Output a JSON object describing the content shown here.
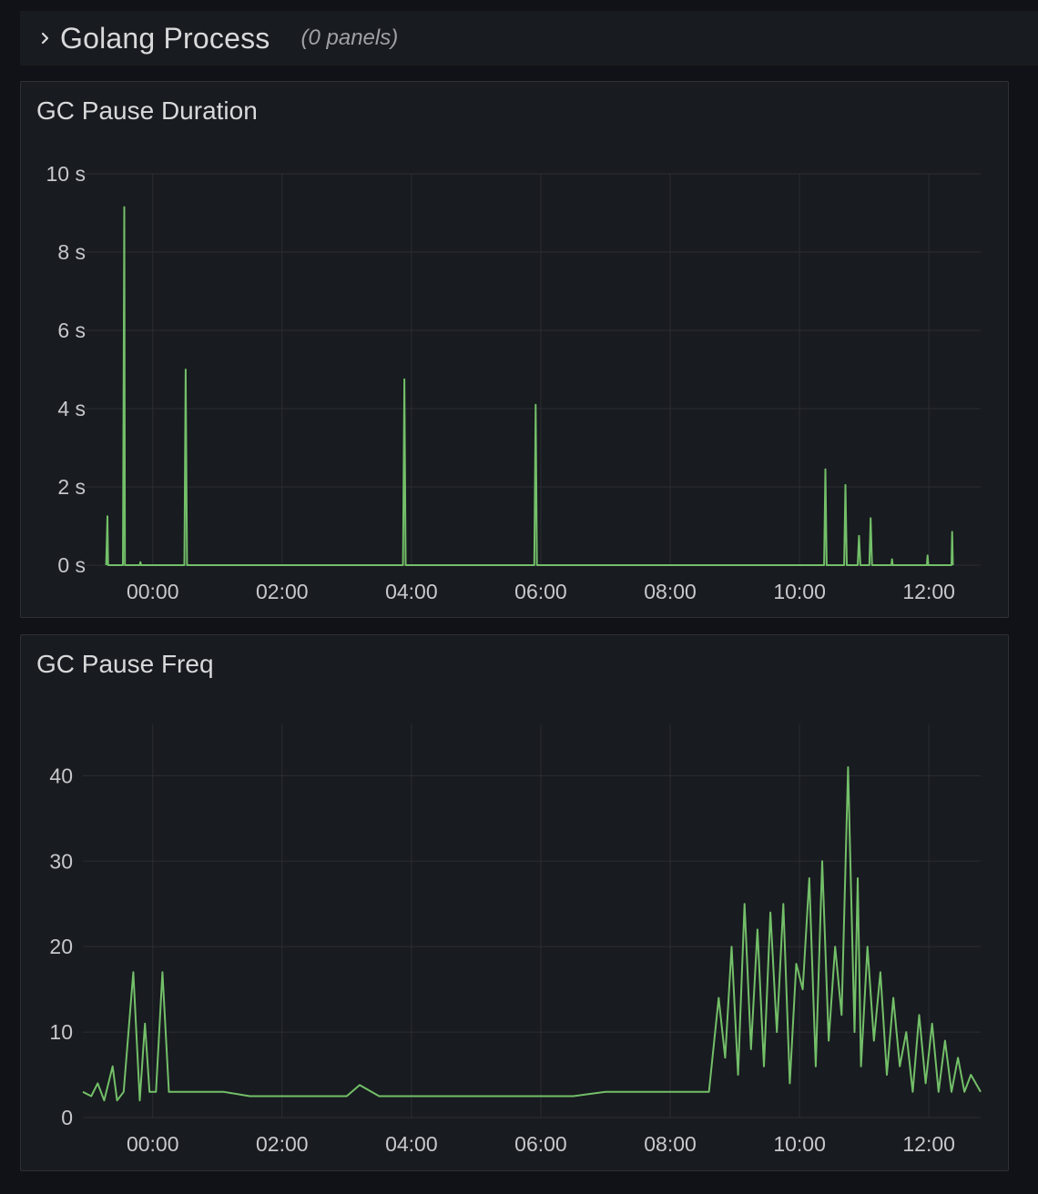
{
  "row": {
    "title": "Golang Process",
    "count": "(0 panels)",
    "icon": "chevron-right-icon"
  },
  "panels": [
    {
      "title": "GC Pause Duration",
      "chart_data": {
        "type": "line",
        "title": "GC Pause Duration",
        "x_unit": "time (hours)",
        "x_range": [
          -1.08,
          12.8
        ],
        "xticks": [
          "00:00",
          "02:00",
          "04:00",
          "06:00",
          "08:00",
          "10:00",
          "12:00"
        ],
        "xtick_values": [
          0,
          2,
          4,
          6,
          8,
          10,
          12
        ],
        "yticks": [
          "0 s",
          "2 s",
          "4 s",
          "6 s",
          "8 s",
          "10 s"
        ],
        "ylim": [
          0,
          10
        ],
        "grid": true,
        "color": "#73bf69",
        "series": [
          {
            "x": [
              -0.72,
              -0.7,
              -0.69,
              -0.46,
              -0.44,
              -0.43,
              -0.2,
              -0.19,
              -0.18,
              0.49,
              0.51,
              0.53,
              3.87,
              3.89,
              3.91,
              5.9,
              5.92,
              5.94,
              10.38,
              10.4,
              10.42,
              10.69,
              10.71,
              10.73,
              10.9,
              10.92,
              10.94,
              11.08,
              11.1,
              11.12,
              11.42,
              11.43,
              11.44,
              11.97,
              11.98,
              11.99,
              12.35,
              12.36,
              12.37
            ],
            "y": [
              0,
              1.25,
              0,
              0,
              9.15,
              0,
              0,
              0.08,
              0,
              0,
              5.0,
              0,
              0,
              4.75,
              0,
              0,
              4.1,
              0,
              0,
              2.45,
              0,
              0,
              2.05,
              0,
              0,
              0.75,
              0,
              0,
              1.2,
              0,
              0,
              0.15,
              0,
              0,
              0.25,
              0,
              0,
              0.85,
              0
            ]
          }
        ]
      }
    },
    {
      "title": "GC Pause Freq",
      "chart_data": {
        "type": "line",
        "title": "GC Pause Freq",
        "x_unit": "time (hours)",
        "x_range": [
          -1.08,
          12.8
        ],
        "xticks": [
          "00:00",
          "02:00",
          "04:00",
          "06:00",
          "08:00",
          "10:00",
          "12:00"
        ],
        "xtick_values": [
          0,
          2,
          4,
          6,
          8,
          10,
          12
        ],
        "yticks": [
          "0",
          "10",
          "20",
          "30",
          "40"
        ],
        "ylim": [
          0,
          46
        ],
        "grid": true,
        "color": "#73bf69",
        "series": [
          {
            "x": [
              -1.08,
              -0.95,
              -0.85,
              -0.75,
              -0.62,
              -0.55,
              -0.45,
              -0.3,
              -0.2,
              -0.12,
              -0.05,
              0.05,
              0.15,
              0.25,
              0.5,
              0.75,
              1.1,
              1.5,
              2.0,
              2.5,
              3.0,
              3.2,
              3.5,
              4.0,
              4.5,
              5.0,
              5.5,
              6.0,
              6.5,
              7.0,
              7.5,
              8.0,
              8.3,
              8.6,
              8.75,
              8.85,
              8.95,
              9.05,
              9.15,
              9.25,
              9.35,
              9.45,
              9.55,
              9.65,
              9.75,
              9.85,
              9.95,
              10.05,
              10.15,
              10.25,
              10.35,
              10.45,
              10.55,
              10.65,
              10.75,
              10.85,
              10.9,
              10.95,
              11.05,
              11.15,
              11.25,
              11.35,
              11.45,
              11.55,
              11.65,
              11.75,
              11.85,
              11.95,
              12.05,
              12.15,
              12.25,
              12.35,
              12.45,
              12.55,
              12.65,
              12.8
            ],
            "y": [
              3,
              2.5,
              4,
              2,
              6,
              2,
              3,
              17,
              2,
              11,
              3,
              3,
              17,
              3,
              3,
              3,
              3,
              2.5,
              2.5,
              2.5,
              2.5,
              3.8,
              2.5,
              2.5,
              2.5,
              2.5,
              2.5,
              2.5,
              2.5,
              3,
              3,
              3,
              3,
              3,
              14,
              7,
              20,
              5,
              25,
              8,
              22,
              6,
              24,
              10,
              25,
              4,
              18,
              15,
              28,
              6,
              30,
              9,
              20,
              12,
              41,
              10,
              28,
              6,
              20,
              9,
              17,
              5,
              14,
              6,
              10,
              3,
              12,
              4,
              11,
              3,
              9,
              3,
              7,
              3,
              5,
              3
            ]
          }
        ]
      }
    }
  ]
}
